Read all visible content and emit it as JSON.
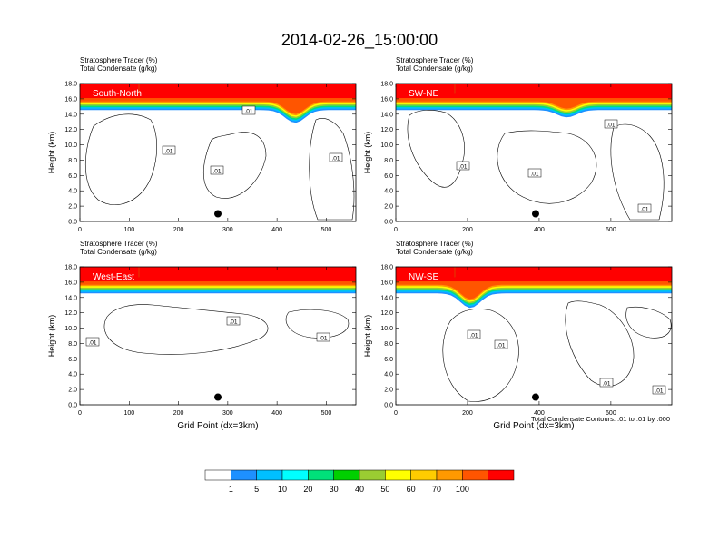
{
  "figure": {
    "title": "2014-02-26_15:00:00",
    "footnote": "Total Condensate Contours: .01 to .01 by .000"
  },
  "colorbar": {
    "colors": [
      "#ffffff",
      "#1e90ff",
      "#00bfff",
      "#00ffff",
      "#00e07a",
      "#00d000",
      "#9acd32",
      "#ffff00",
      "#ffcc00",
      "#ff9900",
      "#ff5500",
      "#ff0000"
    ],
    "labels": [
      "1",
      "5",
      "10",
      "20",
      "30",
      "40",
      "50",
      "60",
      "70",
      "100"
    ]
  },
  "chart_data": [
    {
      "type": "heatmap",
      "panel_label": "South-North",
      "subtitle_line1": "Stratosphere Tracer   (%)",
      "subtitle_line2": "Total Condensate   (g/kg)",
      "xlabel": "",
      "ylabel": "Height (km)",
      "xlim": [
        0,
        560
      ],
      "ylim": [
        0,
        18
      ],
      "xticks": [
        "0",
        "100",
        "200",
        "300",
        "400",
        "500"
      ],
      "yticks": [
        "0.0",
        "2.0",
        "4.0",
        "6.0",
        "8.0",
        "10.0",
        "12.0",
        "14.0",
        "16.0",
        "18.0"
      ],
      "contour_labels": [
        ".01",
        ".01",
        ".01",
        ".01"
      ],
      "marker": {
        "x": 280,
        "y": 1.0
      }
    },
    {
      "type": "heatmap",
      "panel_label": "SW-NE",
      "subtitle_line1": "Stratosphere Tracer   (%)",
      "subtitle_line2": "Total Condensate   (g/kg)",
      "xlabel": "",
      "ylabel": "Height (km)",
      "xlim": [
        0,
        770
      ],
      "ylim": [
        0,
        18
      ],
      "xticks": [
        "0",
        "200",
        "400",
        "600"
      ],
      "yticks": [
        "0.0",
        "2.0",
        "4.0",
        "6.0",
        "8.0",
        "10.0",
        "12.0",
        "14.0",
        "16.0",
        "18.0"
      ],
      "contour_labels": [
        ".01",
        ".01",
        ".01",
        ".01"
      ],
      "marker": {
        "x": 390,
        "y": 1.0
      }
    },
    {
      "type": "heatmap",
      "panel_label": "West-East",
      "subtitle_line1": "Stratosphere Tracer   (%)",
      "subtitle_line2": "Total Condensate   (g/kg)",
      "xlabel": "Grid Point (dx=3km)",
      "ylabel": "Height (km)",
      "xlim": [
        0,
        560
      ],
      "ylim": [
        0,
        18
      ],
      "xticks": [
        "0",
        "100",
        "200",
        "300",
        "400",
        "500"
      ],
      "yticks": [
        "0.0",
        "2.0",
        "4.0",
        "6.0",
        "8.0",
        "10.0",
        "12.0",
        "14.0",
        "16.0",
        "18.0"
      ],
      "contour_labels": [
        ".01",
        ".01",
        ".01"
      ],
      "marker": {
        "x": 280,
        "y": 1.0
      }
    },
    {
      "type": "heatmap",
      "panel_label": "NW-SE",
      "subtitle_line1": "Stratosphere Tracer   (%)",
      "subtitle_line2": "Total Condensate   (g/kg)",
      "xlabel": "Grid Point (dx=3km)",
      "ylabel": "Height (km)",
      "xlim": [
        0,
        770
      ],
      "ylim": [
        0,
        18
      ],
      "xticks": [
        "0",
        "200",
        "400",
        "600"
      ],
      "yticks": [
        "0.0",
        "2.0",
        "4.0",
        "6.0",
        "8.0",
        "10.0",
        "12.0",
        "14.0",
        "16.0",
        "18.0"
      ],
      "contour_labels": [
        ".01",
        ".01",
        ".01",
        ".01"
      ],
      "marker": {
        "x": 390,
        "y": 1.0
      }
    }
  ]
}
